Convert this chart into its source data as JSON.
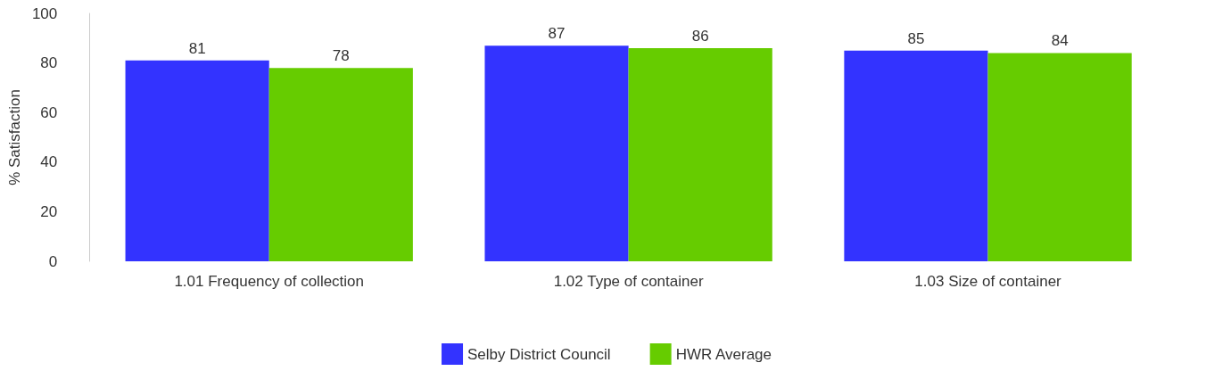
{
  "chart_data": {
    "type": "bar",
    "ylabel": "% Satisfaction",
    "categories": [
      "1.01 Frequency of collection",
      "1.02 Type of container",
      "1.03 Size of container"
    ],
    "series": [
      {
        "name": "Selby District Council",
        "color": "#3333ff",
        "values": [
          81,
          87,
          85
        ]
      },
      {
        "name": "HWR Average",
        "color": "#66cc00",
        "values": [
          78,
          86,
          84
        ]
      }
    ],
    "ylim": [
      0,
      100
    ],
    "yticks": [
      0,
      20,
      40,
      60,
      80,
      100
    ],
    "grid": false,
    "legend": "bottom",
    "data_labels": true
  }
}
